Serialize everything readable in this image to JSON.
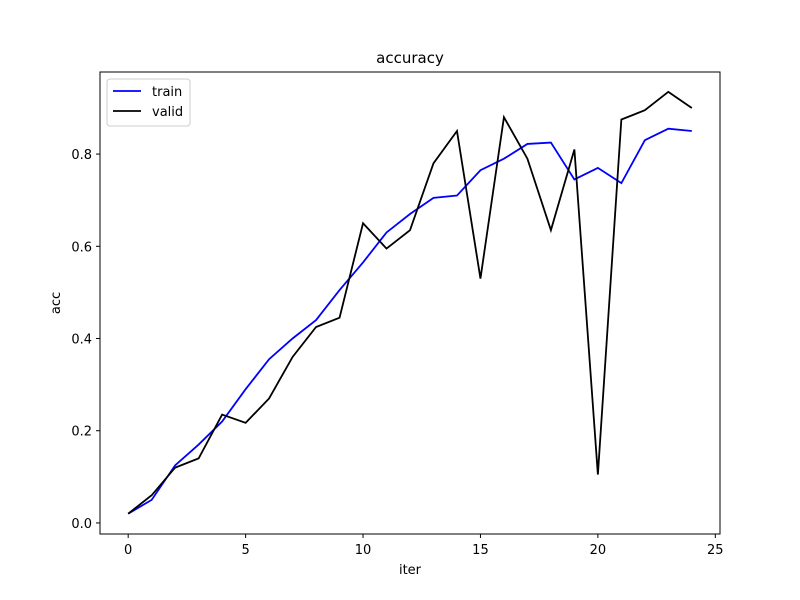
{
  "chart_data": {
    "type": "line",
    "title": "accuracy",
    "xlabel": "iter",
    "ylabel": "acc",
    "xlim": [
      -1.2,
      25.2
    ],
    "ylim": [
      -0.024,
      0.978
    ],
    "xticks": [
      0,
      5,
      10,
      15,
      20,
      25
    ],
    "yticks": [
      0.0,
      0.2,
      0.4,
      0.6,
      0.8
    ],
    "ytick_labels": [
      "0.0",
      "0.2",
      "0.4",
      "0.6",
      "0.8"
    ],
    "grid": false,
    "legend": {
      "position": "top-left"
    },
    "x": [
      0,
      1,
      2,
      3,
      4,
      5,
      6,
      7,
      8,
      9,
      10,
      11,
      12,
      13,
      14,
      15,
      16,
      17,
      18,
      19,
      20,
      21,
      22,
      23,
      24
    ],
    "series": [
      {
        "name": "train",
        "color": "#0000ff",
        "values": [
          0.02,
          0.05,
          0.125,
          0.17,
          0.22,
          0.29,
          0.355,
          0.4,
          0.44,
          0.505,
          0.565,
          0.63,
          0.67,
          0.705,
          0.71,
          0.765,
          0.79,
          0.822,
          0.825,
          0.745,
          0.77,
          0.737,
          0.83,
          0.855,
          0.85
        ]
      },
      {
        "name": "valid",
        "color": "#000000",
        "values": [
          0.02,
          0.06,
          0.12,
          0.14,
          0.235,
          0.217,
          0.27,
          0.36,
          0.425,
          0.445,
          0.65,
          0.595,
          0.635,
          0.78,
          0.85,
          0.53,
          0.88,
          0.79,
          0.635,
          0.81,
          0.105,
          0.875,
          0.895,
          0.935,
          0.9
        ]
      }
    ]
  }
}
